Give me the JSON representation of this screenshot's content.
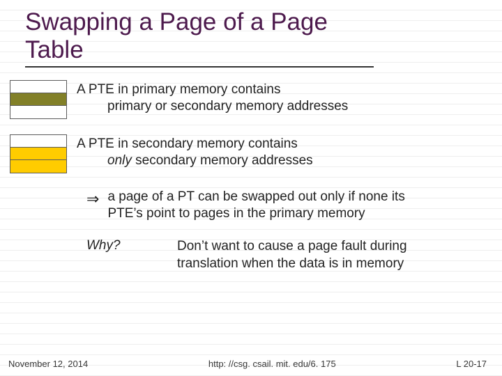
{
  "title": "Swapping a Page of a Page Table",
  "pte_primary": {
    "line1": "A PTE in primary memory contains",
    "line2": "primary or secondary memory addresses",
    "table_rows": [
      {
        "color": "#ffffff"
      },
      {
        "color": "#828028"
      },
      {
        "color": "#ffffff"
      }
    ]
  },
  "pte_secondary": {
    "line1": "A PTE in secondary memory contains",
    "line2_pre": "only",
    "line2_post": " secondary memory addresses",
    "table_rows": [
      {
        "color": "#ffffff"
      },
      {
        "color": "#ffcc00"
      },
      {
        "color": "#ffcc00"
      }
    ]
  },
  "implication": {
    "arrow": "⇒",
    "text": "a page of a PT can be swapped out only if none its PTE’s point to pages in the primary memory"
  },
  "why": {
    "label": "Why?",
    "answer": "Don’t want to cause a page fault during translation when the data is in memory"
  },
  "footer": {
    "date": "November 12, 2014",
    "url": "http: //csg. csail. mit. edu/6. 175",
    "pagenum": "L 20-17"
  },
  "colors": {
    "title_color": "#4d1a4d",
    "text_color": "#222222",
    "rule_color": "#333333",
    "olive": "#828028",
    "yellow": "#ffcc00",
    "grid": "#eeeeee"
  }
}
